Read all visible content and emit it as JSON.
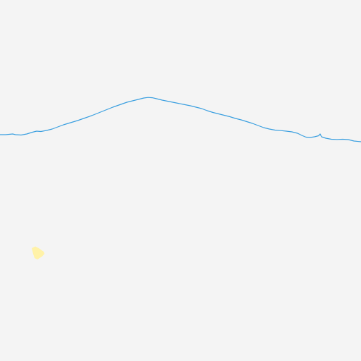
{
  "map": {
    "background_color": "#f4f4f4",
    "river": {
      "kind": "waterway-line",
      "color": "#3a9fe0"
    },
    "feature": {
      "kind": "small-area-marker",
      "color": "#fff2a8"
    }
  }
}
